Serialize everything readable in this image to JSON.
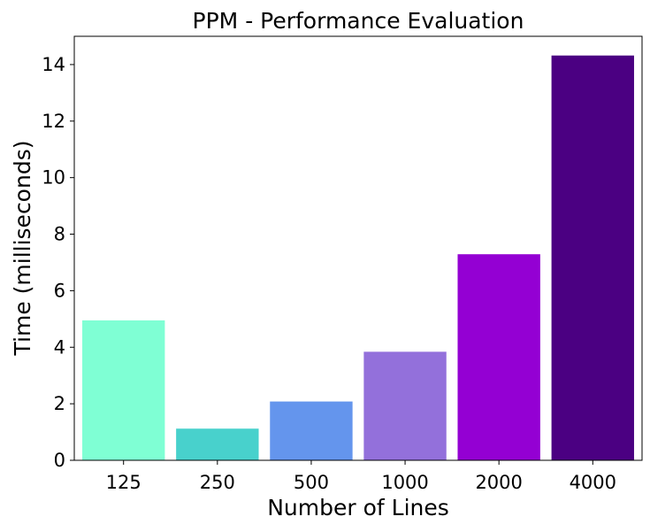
{
  "chart_data": {
    "type": "bar",
    "title": "PPM - Performance Evaluation",
    "xlabel": "Number of Lines",
    "ylabel": "Time (milliseconds)",
    "categories": [
      "125",
      "250",
      "500",
      "1000",
      "2000",
      "4000"
    ],
    "values": [
      4.95,
      1.12,
      2.08,
      3.84,
      7.29,
      14.32
    ],
    "colors": [
      "#7fffd4",
      "#48d1cc",
      "#6495ed",
      "#9370db",
      "#9400d3",
      "#4b0082"
    ],
    "ylim": [
      0,
      15
    ],
    "yticks": [
      0,
      2,
      4,
      6,
      8,
      10,
      12,
      14
    ],
    "grid": false,
    "legend": "none"
  }
}
